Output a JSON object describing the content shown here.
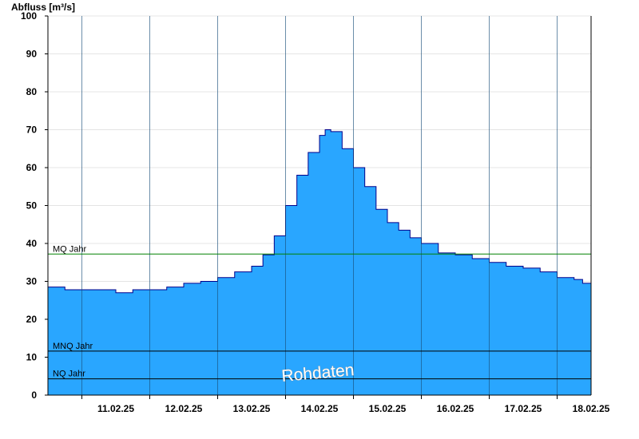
{
  "chart_data": {
    "type": "area",
    "title": "",
    "ylabel": "Abfluss [m³/s]",
    "xlabel": "",
    "ylim": [
      0,
      100
    ],
    "yticks": [
      0,
      10,
      20,
      30,
      40,
      50,
      60,
      70,
      80,
      90,
      100
    ],
    "grid": true,
    "x_range": [
      "2025-02-10T12:00",
      "2025-02-18T12:00"
    ],
    "xtick_labels": [
      "11.02.25",
      "12.02.25",
      "13.02.25",
      "14.02.25",
      "15.02.25",
      "16.02.25",
      "17.02.25",
      "18.02.25"
    ],
    "day_boundaries": [
      "2025-02-11T00:00",
      "2025-02-12T00:00",
      "2025-02-13T00:00",
      "2025-02-14T00:00",
      "2025-02-15T00:00",
      "2025-02-16T00:00",
      "2025-02-17T00:00",
      "2025-02-18T00:00"
    ],
    "series": [
      {
        "color": "#29a6ff",
        "line_color": "#00008b",
        "points": [
          [
            "2025-02-10T12:00",
            28.5
          ],
          [
            "2025-02-10T18:00",
            27.8
          ],
          [
            "2025-02-11T06:00",
            27.8
          ],
          [
            "2025-02-11T12:00",
            27.0
          ],
          [
            "2025-02-11T18:00",
            27.8
          ],
          [
            "2025-02-12T06:00",
            28.5
          ],
          [
            "2025-02-12T12:00",
            29.5
          ],
          [
            "2025-02-12T18:00",
            30.0
          ],
          [
            "2025-02-13T00:00",
            31.0
          ],
          [
            "2025-02-13T06:00",
            32.5
          ],
          [
            "2025-02-13T12:00",
            34.0
          ],
          [
            "2025-02-13T16:00",
            37.0
          ],
          [
            "2025-02-13T20:00",
            42.0
          ],
          [
            "2025-02-14T00:00",
            50.0
          ],
          [
            "2025-02-14T04:00",
            58.0
          ],
          [
            "2025-02-14T08:00",
            64.0
          ],
          [
            "2025-02-14T12:00",
            68.5
          ],
          [
            "2025-02-14T14:00",
            70.0
          ],
          [
            "2025-02-14T16:00",
            69.5
          ],
          [
            "2025-02-14T20:00",
            65.0
          ],
          [
            "2025-02-15T00:00",
            60.0
          ],
          [
            "2025-02-15T04:00",
            55.0
          ],
          [
            "2025-02-15T08:00",
            49.0
          ],
          [
            "2025-02-15T12:00",
            45.5
          ],
          [
            "2025-02-15T16:00",
            43.5
          ],
          [
            "2025-02-15T20:00",
            41.5
          ],
          [
            "2025-02-16T00:00",
            40.0
          ],
          [
            "2025-02-16T06:00",
            37.5
          ],
          [
            "2025-02-16T12:00",
            37.0
          ],
          [
            "2025-02-16T18:00",
            36.0
          ],
          [
            "2025-02-17T00:00",
            35.0
          ],
          [
            "2025-02-17T06:00",
            34.0
          ],
          [
            "2025-02-17T12:00",
            33.5
          ],
          [
            "2025-02-17T18:00",
            32.5
          ],
          [
            "2025-02-18T00:00",
            31.0
          ],
          [
            "2025-02-18T06:00",
            30.5
          ],
          [
            "2025-02-18T09:00",
            29.5
          ],
          [
            "2025-02-18T12:00",
            29.5
          ]
        ]
      }
    ],
    "reference_lines": [
      {
        "label": "MQ Jahr",
        "value": 37.2,
        "color": "#008000"
      },
      {
        "label": "MNQ Jahr",
        "value": 11.6,
        "color": "#000000"
      },
      {
        "label": "NQ Jahr",
        "value": 4.3,
        "color": "#000000"
      }
    ],
    "annotation": "Rohdaten"
  }
}
